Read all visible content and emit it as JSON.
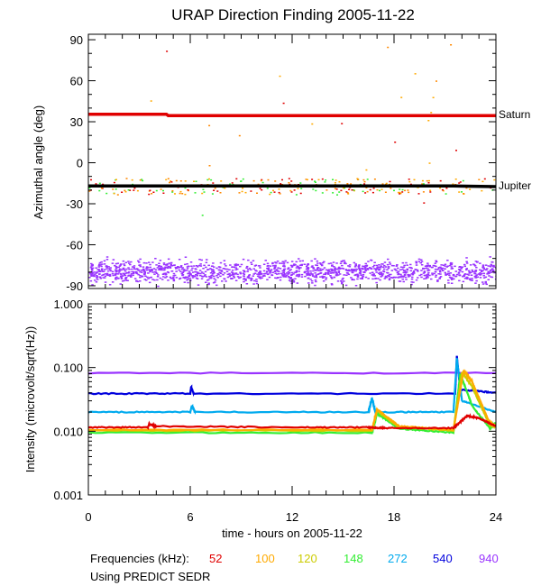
{
  "title": "URAP Direction Finding  2005-11-22",
  "footer": {
    "freq_label": "Frequencies (kHz):",
    "note": "Using PREDICT SEDR"
  },
  "chart_data": [
    {
      "type": "scatter",
      "ylabel": "Azimuthal angle (deg)",
      "xlim": [
        0,
        24
      ],
      "ylim": [
        -92,
        94
      ],
      "yticks": [
        "90",
        "60",
        "30",
        "0",
        "-30",
        "-60",
        "-90"
      ],
      "ytick_values": [
        90,
        60,
        30,
        0,
        -30,
        -60,
        -90
      ],
      "lines": [
        {
          "name": "Saturn",
          "color": "#e00000",
          "x": [
            0,
            4.6,
            4.7,
            24
          ],
          "y": [
            35.5,
            35.5,
            34.5,
            34.5
          ]
        },
        {
          "name": "Jupiter",
          "color": "#000000",
          "x": [
            0,
            21.5,
            24
          ],
          "y": [
            -17,
            -17,
            -17.5
          ]
        }
      ],
      "scatter_bands": [
        {
          "label": "940",
          "color": "#9933ff",
          "y_center": -79,
          "y_spread": 8
        },
        {
          "label": "mixed",
          "colors": [
            "#e00000",
            "#ffaa00",
            "#33ee33",
            "#ff8800"
          ],
          "y_center": -17,
          "y_spread": 6
        }
      ]
    },
    {
      "type": "line",
      "ylabel": "Intensity (microvolt/sqrt(Hz))",
      "xlabel": "time - hours on 2005-11-22",
      "xlim": [
        0,
        24
      ],
      "xticks": [
        "0",
        "6",
        "12",
        "18",
        "24"
      ],
      "xtick_values": [
        0,
        6,
        12,
        18,
        24
      ],
      "yscale": "log",
      "ylim": [
        0.001,
        1.0
      ],
      "yticks": [
        "1.000",
        "0.100",
        "0.010",
        "0.001"
      ],
      "ytick_values": [
        1.0,
        0.1,
        0.01,
        0.001
      ],
      "series": [
        {
          "name": "52",
          "color": "#e00000",
          "x": [
            0,
            3.5,
            3.6,
            4.0,
            12,
            16.5,
            17.5,
            21.5,
            22.3,
            23.0,
            24
          ],
          "y": [
            0.0115,
            0.0115,
            0.013,
            0.012,
            0.0115,
            0.0115,
            0.0112,
            0.0112,
            0.0175,
            0.016,
            0.012
          ]
        },
        {
          "name": "100",
          "color": "#ffaa00",
          "x": [
            0,
            16.7,
            17.0,
            18.3,
            21.5,
            22.1,
            22.6,
            23.6,
            24
          ],
          "y": [
            0.0105,
            0.0105,
            0.022,
            0.012,
            0.0105,
            0.09,
            0.06,
            0.014,
            0.012
          ]
        },
        {
          "name": "120",
          "color": "#cccc00",
          "x": [
            0,
            16.7,
            17.0,
            18.3,
            21.5,
            22.0,
            22.6,
            23.6,
            24
          ],
          "y": [
            0.0102,
            0.0102,
            0.021,
            0.0115,
            0.0102,
            0.085,
            0.05,
            0.013,
            0.012
          ]
        },
        {
          "name": "148",
          "color": "#33ee33",
          "x": [
            0,
            16.7,
            17.0,
            18.3,
            21.5,
            21.9,
            22.6,
            23.6,
            24
          ],
          "y": [
            0.0095,
            0.0095,
            0.019,
            0.011,
            0.0095,
            0.08,
            0.025,
            0.0115,
            0.013
          ]
        },
        {
          "name": "272",
          "color": "#00aaee",
          "x": [
            0,
            6.0,
            6.1,
            6.3,
            16.5,
            16.7,
            16.9,
            21.5,
            21.7,
            22.0,
            24
          ],
          "y": [
            0.02,
            0.02,
            0.025,
            0.02,
            0.02,
            0.033,
            0.02,
            0.02,
            0.14,
            0.03,
            0.02
          ]
        },
        {
          "name": "540",
          "color": "#0000dd",
          "x": [
            0,
            6.0,
            6.05,
            6.2,
            21.6,
            21.7,
            21.9,
            24
          ],
          "y": [
            0.039,
            0.039,
            0.05,
            0.039,
            0.039,
            0.15,
            0.045,
            0.04
          ]
        },
        {
          "name": "940",
          "color": "#9933ff",
          "x": [
            0,
            24
          ],
          "y": [
            0.082,
            0.082
          ]
        }
      ]
    }
  ]
}
